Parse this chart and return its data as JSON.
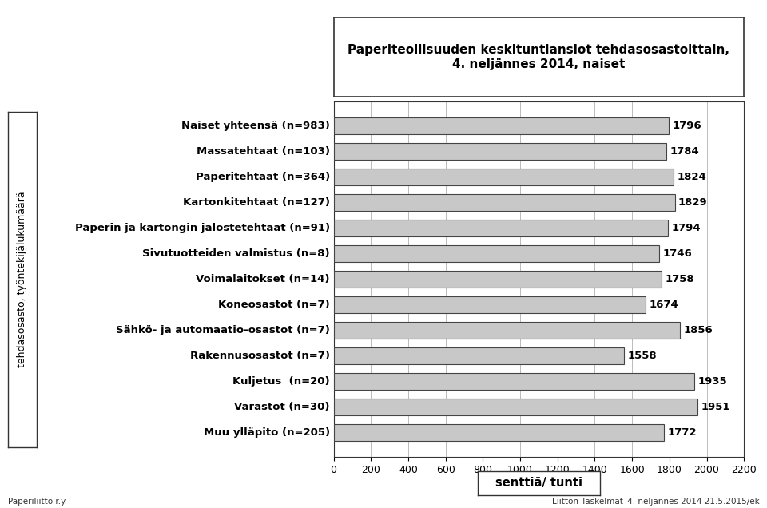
{
  "title_line1": "Paperiteollisuuden keskituntiansiot tehdasosastoittain,",
  "title_line2": "4. neljännes 2014, naiset",
  "categories": [
    "Naiset yhteensä (n=983)",
    "Massatehtaat (n=103)",
    "Paperitehtaat (n=364)",
    "Kartonkitehtaat (n=127)",
    "Paperin ja kartongin jalostetehtaat (n=91)",
    "Sivutuotteiden valmistus (n=8)",
    "Voimalaitokset (n=14)",
    "Koneosastot (n=7)",
    "Sähkö- ja automaatio-osastot (n=7)",
    "Rakennusosastot (n=7)",
    "Kuljetus  (n=20)",
    "Varastot (n=30)",
    "Muu ylläpito (n=205)"
  ],
  "values": [
    1796,
    1784,
    1824,
    1829,
    1794,
    1746,
    1758,
    1674,
    1856,
    1558,
    1935,
    1951,
    1772
  ],
  "bar_color": "#c8c8c8",
  "bar_edge_color": "#444444",
  "xlabel": "senttiä/ tunti",
  "ylabel": "tehdasosasto, työntekijälukumäärä",
  "xlim": [
    0,
    2200
  ],
  "xticks": [
    0,
    200,
    400,
    600,
    800,
    1000,
    1200,
    1400,
    1600,
    1800,
    2000,
    2200
  ],
  "footer_left": "Paperiliitto r.y.",
  "footer_right": "Liitton_laskelmat_4. neljännes 2014 21.5.2015/ek",
  "background_color": "#ffffff",
  "grid_color": "#bbbbbb",
  "box_edge_color": "#333333"
}
